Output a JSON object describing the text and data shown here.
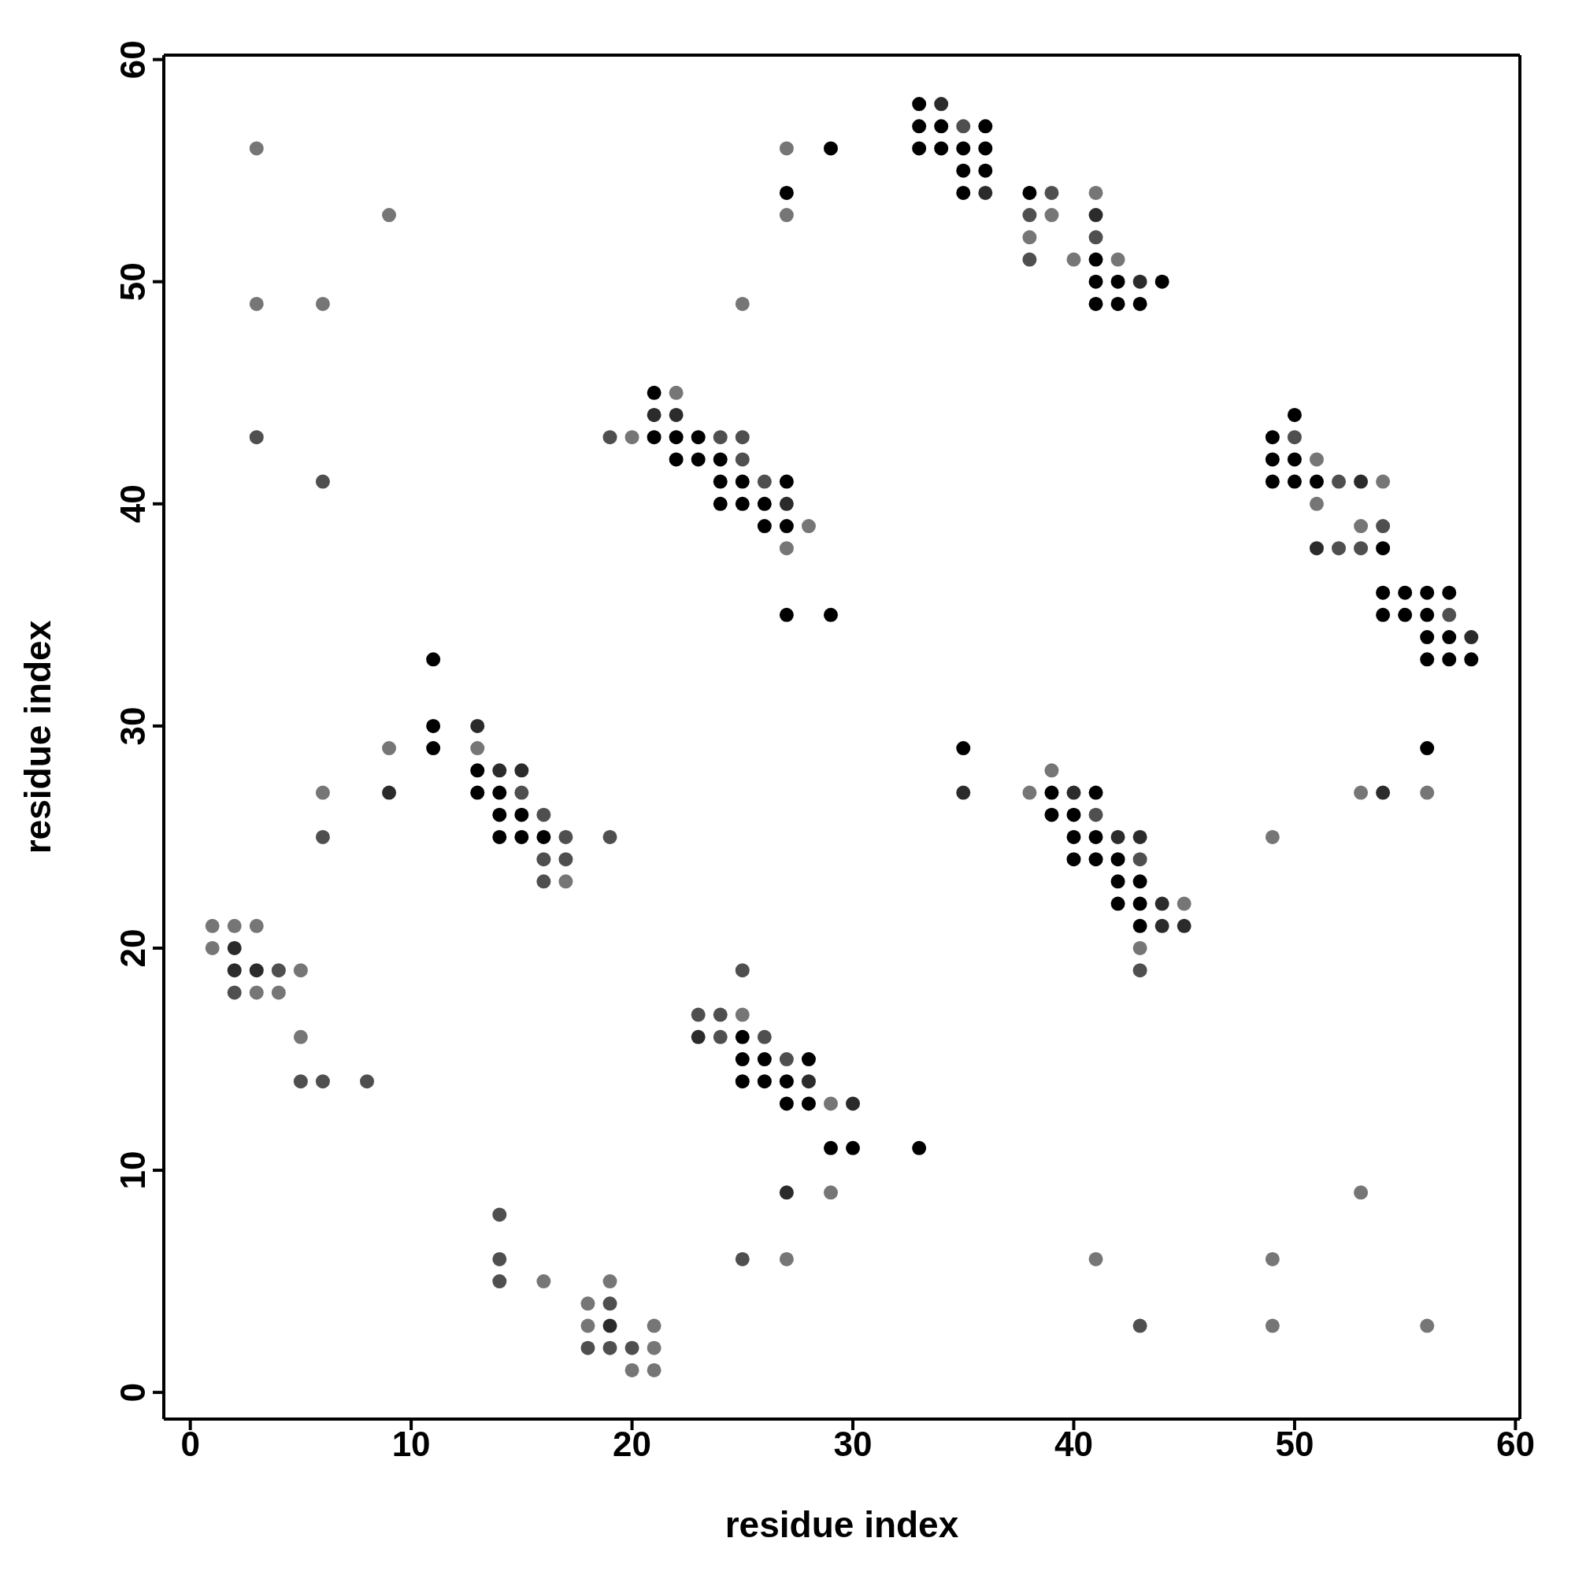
{
  "chart_data": {
    "type": "scatter",
    "xlabel": "residue index",
    "ylabel": "residue index",
    "xlim": [
      -1.2,
      60.2
    ],
    "ylim": [
      -1.2,
      60.2
    ],
    "xticks": [
      0,
      10,
      20,
      30,
      40,
      50,
      60
    ],
    "yticks": [
      0,
      10,
      20,
      30,
      40,
      50,
      60
    ],
    "legend": false,
    "marker": "circle",
    "series": [
      {
        "color": "#000000",
        "x": [
          33,
          33,
          34,
          36,
          29,
          33,
          34,
          35,
          36,
          35,
          36,
          27,
          35,
          38,
          41,
          41,
          42,
          44,
          41,
          42,
          43,
          21,
          50,
          21,
          22,
          23,
          49,
          22,
          23,
          24,
          49,
          50,
          24,
          25,
          27,
          49,
          50,
          51,
          24,
          25,
          26,
          26,
          27,
          54,
          54,
          55,
          56,
          57,
          27,
          29,
          54,
          55,
          56,
          56,
          57,
          11,
          56,
          57,
          58,
          11,
          11,
          35,
          56,
          13,
          13,
          14,
          39,
          41,
          14,
          15,
          39,
          40,
          14,
          15,
          16,
          40,
          41,
          40,
          41,
          42,
          42,
          43,
          42,
          43,
          43,
          25,
          25,
          26,
          28,
          25,
          26,
          27,
          27,
          28,
          29,
          30,
          33
        ],
        "values": [
          58,
          57,
          57,
          57,
          56,
          56,
          56,
          56,
          56,
          55,
          55,
          54,
          54,
          54,
          51,
          50,
          50,
          50,
          49,
          49,
          49,
          45,
          44,
          43,
          43,
          43,
          43,
          42,
          42,
          42,
          42,
          42,
          41,
          41,
          41,
          41,
          41,
          41,
          40,
          40,
          40,
          39,
          39,
          38,
          36,
          36,
          36,
          36,
          35,
          35,
          35,
          35,
          35,
          34,
          34,
          33,
          33,
          33,
          33,
          30,
          29,
          29,
          29,
          28,
          27,
          27,
          27,
          27,
          26,
          26,
          26,
          26,
          25,
          25,
          25,
          25,
          25,
          24,
          24,
          24,
          23,
          23,
          22,
          22,
          21,
          16,
          15,
          15,
          15,
          14,
          14,
          14,
          13,
          13,
          11,
          11,
          11
        ]
      },
      {
        "color": "#2b2b2b",
        "x": [
          34,
          36,
          41,
          43,
          21,
          22,
          53,
          27,
          51,
          58,
          13,
          14,
          15,
          9,
          35,
          40,
          54,
          42,
          43,
          44,
          44,
          45,
          2,
          2,
          3,
          23,
          28,
          30,
          27,
          19
        ],
        "values": [
          58,
          54,
          53,
          50,
          44,
          44,
          41,
          40,
          38,
          34,
          30,
          28,
          28,
          27,
          27,
          27,
          27,
          25,
          25,
          22,
          21,
          21,
          20,
          19,
          19,
          16,
          14,
          13,
          9,
          3
        ]
      },
      {
        "color": "#4f4f4f",
        "x": [
          35,
          39,
          38,
          41,
          38,
          3,
          19,
          24,
          25,
          50,
          25,
          6,
          26,
          52,
          54,
          52,
          53,
          57,
          15,
          16,
          41,
          6,
          17,
          19,
          16,
          17,
          43,
          16,
          4,
          25,
          43,
          2,
          23,
          24,
          24,
          26,
          27,
          5,
          6,
          8,
          14,
          14,
          25,
          14,
          19,
          43,
          18,
          19,
          20
        ],
        "values": [
          57,
          54,
          53,
          52,
          51,
          43,
          43,
          43,
          43,
          43,
          42,
          41,
          41,
          41,
          39,
          38,
          38,
          35,
          27,
          26,
          26,
          25,
          25,
          25,
          24,
          24,
          24,
          23,
          19,
          19,
          19,
          18,
          17,
          17,
          16,
          16,
          15,
          14,
          14,
          14,
          8,
          6,
          6,
          5,
          4,
          3,
          2,
          2,
          2
        ]
      },
      {
        "color": "#767676",
        "x": [
          3,
          27,
          41,
          9,
          27,
          39,
          38,
          40,
          42,
          3,
          6,
          25,
          22,
          20,
          51,
          54,
          51,
          28,
          53,
          27,
          9,
          13,
          39,
          6,
          38,
          53,
          56,
          49,
          17,
          45,
          1,
          2,
          3,
          1,
          43,
          5,
          3,
          4,
          25,
          5,
          29,
          29,
          53,
          27,
          41,
          49,
          16,
          19,
          18,
          18,
          21,
          49,
          56,
          21,
          20,
          21
        ],
        "values": [
          56,
          56,
          54,
          53,
          53,
          53,
          52,
          51,
          51,
          49,
          49,
          49,
          45,
          43,
          42,
          41,
          40,
          39,
          39,
          38,
          29,
          29,
          28,
          27,
          27,
          27,
          27,
          25,
          23,
          22,
          21,
          21,
          21,
          20,
          20,
          19,
          18,
          18,
          17,
          16,
          13,
          9,
          9,
          6,
          6,
          6,
          5,
          5,
          4,
          3,
          3,
          3,
          3,
          2,
          1,
          1
        ]
      }
    ]
  }
}
